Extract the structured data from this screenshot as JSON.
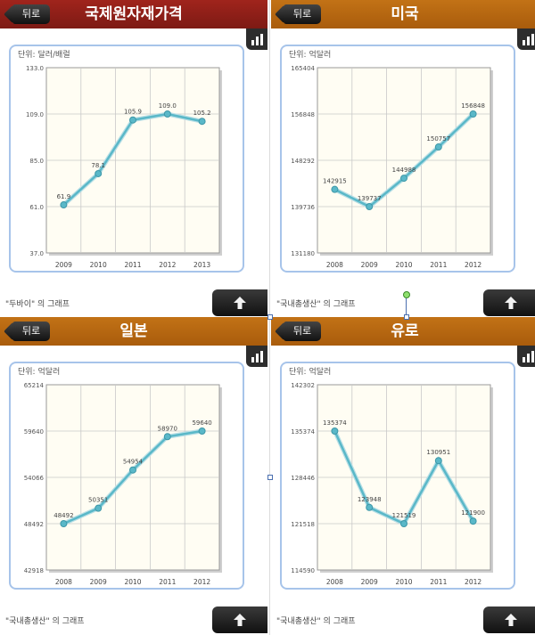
{
  "back_label": "뒤로",
  "unit_prefix": "단위: ",
  "caption_suffix": " 의 그래프",
  "colors": {
    "line": "#5ab8c8",
    "plot_bg": "#fffdf3",
    "frame": "#a7c4ea",
    "grid": "#c9c9c9"
  },
  "icons": {
    "back": "back-arrow-icon",
    "graph": "bar-chart-icon",
    "up": "up-arrow-icon"
  },
  "panels": [
    {
      "title": "국제원자재가격",
      "header": "red",
      "unit": "달러/배럴",
      "caption": "\"두바이\"",
      "chart_data": {
        "type": "line",
        "categories": [
          "2009",
          "2010",
          "2011",
          "2012",
          "2013"
        ],
        "values": [
          61.9,
          78.1,
          105.9,
          109.0,
          105.2
        ],
        "value_labels": [
          "61.9",
          "78.1",
          "105.9",
          "109.0",
          "105.2"
        ],
        "y_ticks": [
          "37.0",
          "61.0",
          "85.0",
          "109.0",
          "133.0"
        ],
        "ylim": [
          37.0,
          133.0
        ]
      }
    },
    {
      "title": "미국",
      "header": "orange",
      "unit": "억달러",
      "caption": "\"국내총생산\"",
      "chart_data": {
        "type": "line",
        "categories": [
          "2008",
          "2009",
          "2010",
          "2011",
          "2012"
        ],
        "values": [
          142915,
          139737,
          144988,
          150757,
          156848
        ],
        "value_labels": [
          "142915",
          "139737",
          "144988",
          "150757",
          "156848"
        ],
        "y_ticks": [
          "131180",
          "139736",
          "148292",
          "156848",
          "165404"
        ],
        "ylim": [
          131180,
          165404
        ]
      }
    },
    {
      "title": "일본",
      "header": "orange",
      "unit": "억달러",
      "caption": "\"국내총생산\"",
      "chart_data": {
        "type": "line",
        "categories": [
          "2008",
          "2009",
          "2010",
          "2011",
          "2012"
        ],
        "values": [
          48492,
          50351,
          54954,
          58970,
          59640
        ],
        "value_labels": [
          "48492",
          "50351",
          "54954",
          "58970",
          "59640"
        ],
        "y_ticks": [
          "42918",
          "48492",
          "54066",
          "59640",
          "65214"
        ],
        "ylim": [
          42918,
          65214
        ]
      }
    },
    {
      "title": "유로",
      "header": "orange",
      "unit": "억달러",
      "caption": "\"국내총생산\"",
      "chart_data": {
        "type": "line",
        "categories": [
          "2008",
          "2009",
          "2010",
          "2011",
          "2012"
        ],
        "values": [
          135374,
          123948,
          121519,
          130951,
          121900
        ],
        "value_labels": [
          "135374",
          "123948",
          "121519",
          "130951",
          "121900"
        ],
        "y_ticks": [
          "114590",
          "121518",
          "128446",
          "135374",
          "142302"
        ],
        "ylim": [
          114590,
          142302
        ]
      }
    }
  ]
}
